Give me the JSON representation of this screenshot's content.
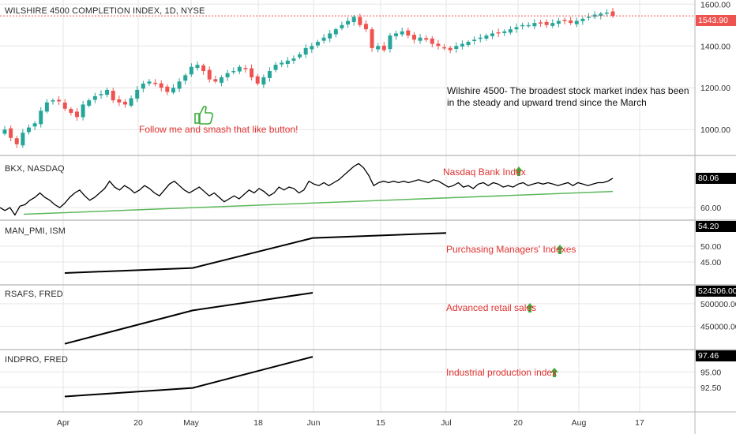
{
  "colors": {
    "up": "#26a69a",
    "down": "#ef5350",
    "bkx_line": "#000000",
    "bkx_trend": "#5cb85c",
    "note_red": "#e0312f",
    "arrow_green": "#3cae3c",
    "grid": "#e6e6e6",
    "divider": "#b5b5b5"
  },
  "x_axis": {
    "ticks": [
      "Apr",
      "20",
      "May",
      "18",
      "Jun",
      "15",
      "Jul",
      "20",
      "Aug",
      "17"
    ]
  },
  "panels": {
    "main": {
      "title": "WILSHIRE 4500 COMPLETION INDEX, 1D, NYSE",
      "last_label": "1543.90"
    },
    "bkx": {
      "title": "BKX, NASDAQ",
      "last_label": "80.06",
      "note": "Nasdaq Bank Index"
    },
    "pmi": {
      "title": "MAN_PMI, ISM",
      "last_label": "54.20",
      "note": "Purchasing Managers' Indexes"
    },
    "retail": {
      "title": "RSAFS, FRED",
      "last_label": "524306.00",
      "note": "Advanced retail sales"
    },
    "indpro": {
      "title": "INDPRO, FRED",
      "last_label": "97.46",
      "note": "Industrial production index"
    }
  },
  "notes": {
    "like": "Follow me and smash that like button!",
    "wilshire": "Wilshire 4500-  The broadest stock market index has been in the steady and upward trend since the March"
  },
  "chart_data": [
    {
      "type": "candlestick",
      "title": "WILSHIRE 4500 COMPLETION INDEX, 1D, NYSE",
      "y_ticks": [
        "1600.00",
        "1400.00",
        "1200.00",
        "1000.00"
      ],
      "ylim": [
        880,
        1620
      ],
      "last_value": 1543.9,
      "x_start": "2020-03-20",
      "close": [
        1000,
        960,
        930,
        985,
        1010,
        1030,
        1090,
        1130,
        1140,
        1135,
        1100,
        1080,
        1060,
        1120,
        1140,
        1160,
        1170,
        1190,
        1140,
        1130,
        1120,
        1150,
        1190,
        1220,
        1230,
        1220,
        1200,
        1180,
        1200,
        1230,
        1260,
        1300,
        1310,
        1280,
        1240,
        1230,
        1250,
        1270,
        1280,
        1300,
        1290,
        1250,
        1220,
        1250,
        1280,
        1310,
        1320,
        1330,
        1340,
        1360,
        1390,
        1400,
        1420,
        1440,
        1460,
        1480,
        1500,
        1520,
        1540,
        1500,
        1480,
        1390,
        1400,
        1380,
        1450,
        1460,
        1470,
        1450,
        1430,
        1440,
        1430,
        1410,
        1400,
        1390,
        1380,
        1400,
        1410,
        1420,
        1430,
        1440,
        1450,
        1460,
        1460,
        1470,
        1480,
        1490,
        1500,
        1500,
        1510,
        1510,
        1500,
        1510,
        1520,
        1520,
        1510,
        1520,
        1530,
        1540,
        1550,
        1555,
        1560,
        1544
      ]
    },
    {
      "type": "line",
      "title": "BKX, NASDAQ",
      "y_ticks": [
        "60.00"
      ],
      "ylim": [
        52,
        95
      ],
      "last_value": 80.06,
      "values": [
        60,
        58,
        60,
        55,
        61,
        62,
        65,
        67,
        70,
        67,
        65,
        62,
        60,
        63,
        67,
        70,
        72,
        68,
        65,
        67,
        70,
        73,
        78,
        74,
        72,
        75,
        73,
        70,
        72,
        75,
        73,
        70,
        68,
        72,
        76,
        78,
        75,
        72,
        70,
        72,
        74,
        71,
        68,
        70,
        67,
        64,
        66,
        68,
        66,
        69,
        72,
        70,
        73,
        71,
        68,
        70,
        74,
        72,
        74,
        73,
        70,
        72,
        78,
        76,
        75,
        77,
        75,
        77,
        79,
        82,
        85,
        88,
        90,
        87,
        82,
        75,
        77,
        78,
        77,
        78,
        77,
        78,
        77,
        78,
        79,
        78,
        77,
        79,
        78,
        76,
        74,
        75,
        77,
        74,
        75,
        73,
        76,
        77,
        75,
        77,
        76,
        74,
        75,
        74,
        76,
        77,
        75,
        76,
        77,
        76,
        77,
        76,
        75,
        76,
        77,
        75,
        77,
        76,
        75,
        76,
        77,
        77,
        78,
        80
      ],
      "trend_line": {
        "start": 55.5,
        "end": 71
      }
    },
    {
      "type": "line",
      "title": "MAN_PMI, ISM",
      "x": [
        "Apr",
        "May",
        "Jun",
        "Jul"
      ],
      "values": [
        41.5,
        43.1,
        52.6,
        54.2
      ],
      "y_ticks": [
        "50.00",
        "45.00"
      ],
      "ylim": [
        38,
        58
      ]
    },
    {
      "type": "line",
      "title": "RSAFS, FRED",
      "x": [
        "Apr",
        "May",
        "Jun"
      ],
      "values": [
        411000,
        485000,
        524306
      ],
      "y_ticks": [
        "500000.00",
        "450000.00"
      ],
      "ylim": [
        400000,
        540000
      ]
    },
    {
      "type": "line",
      "title": "INDPRO, FRED",
      "x": [
        "Apr",
        "May",
        "Jun"
      ],
      "values": [
        91.0,
        92.4,
        97.46
      ],
      "y_ticks": [
        "95.00",
        "92.50"
      ],
      "ylim": [
        88.5,
        98.5
      ]
    }
  ]
}
